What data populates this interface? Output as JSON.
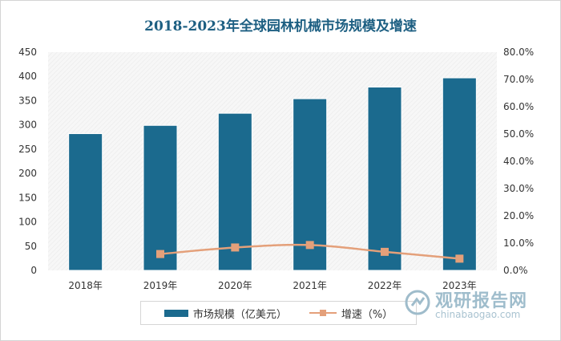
{
  "chart_data": {
    "type": "bar",
    "title": "2018-2023年全球园林机械市场规模及增速",
    "categories": [
      "2018年",
      "2019年",
      "2020年",
      "2021年",
      "2022年",
      "2023年"
    ],
    "series": [
      {
        "name": "市场规模（亿美元）",
        "type": "bar",
        "axis": "left",
        "color": "#1b6a8e",
        "values": [
          282,
          299,
          324,
          354,
          378,
          397
        ]
      },
      {
        "name": "增速（%）",
        "type": "line",
        "axis": "right",
        "color": "#e4a07a",
        "values": [
          null,
          6.0,
          8.4,
          9.3,
          6.8,
          4.3
        ]
      }
    ],
    "y_left": {
      "min": 0,
      "max": 450,
      "step": 50,
      "ticks": [
        "0",
        "50",
        "100",
        "150",
        "200",
        "250",
        "300",
        "350",
        "400",
        "450"
      ]
    },
    "y_right": {
      "min": 0,
      "max": 80,
      "step": 10,
      "ticks": [
        "0.0%",
        "10.0%",
        "20.0%",
        "30.0%",
        "40.0%",
        "50.0%",
        "60.0%",
        "70.0%",
        "80.0%"
      ]
    },
    "grid": false,
    "legend_position": "bottom"
  },
  "legend": {
    "bar_label": "市场规模（亿美元）",
    "line_label": "增速（%）"
  },
  "watermark": {
    "title": "观研报告网",
    "subtitle": "chinabaogao.com"
  }
}
